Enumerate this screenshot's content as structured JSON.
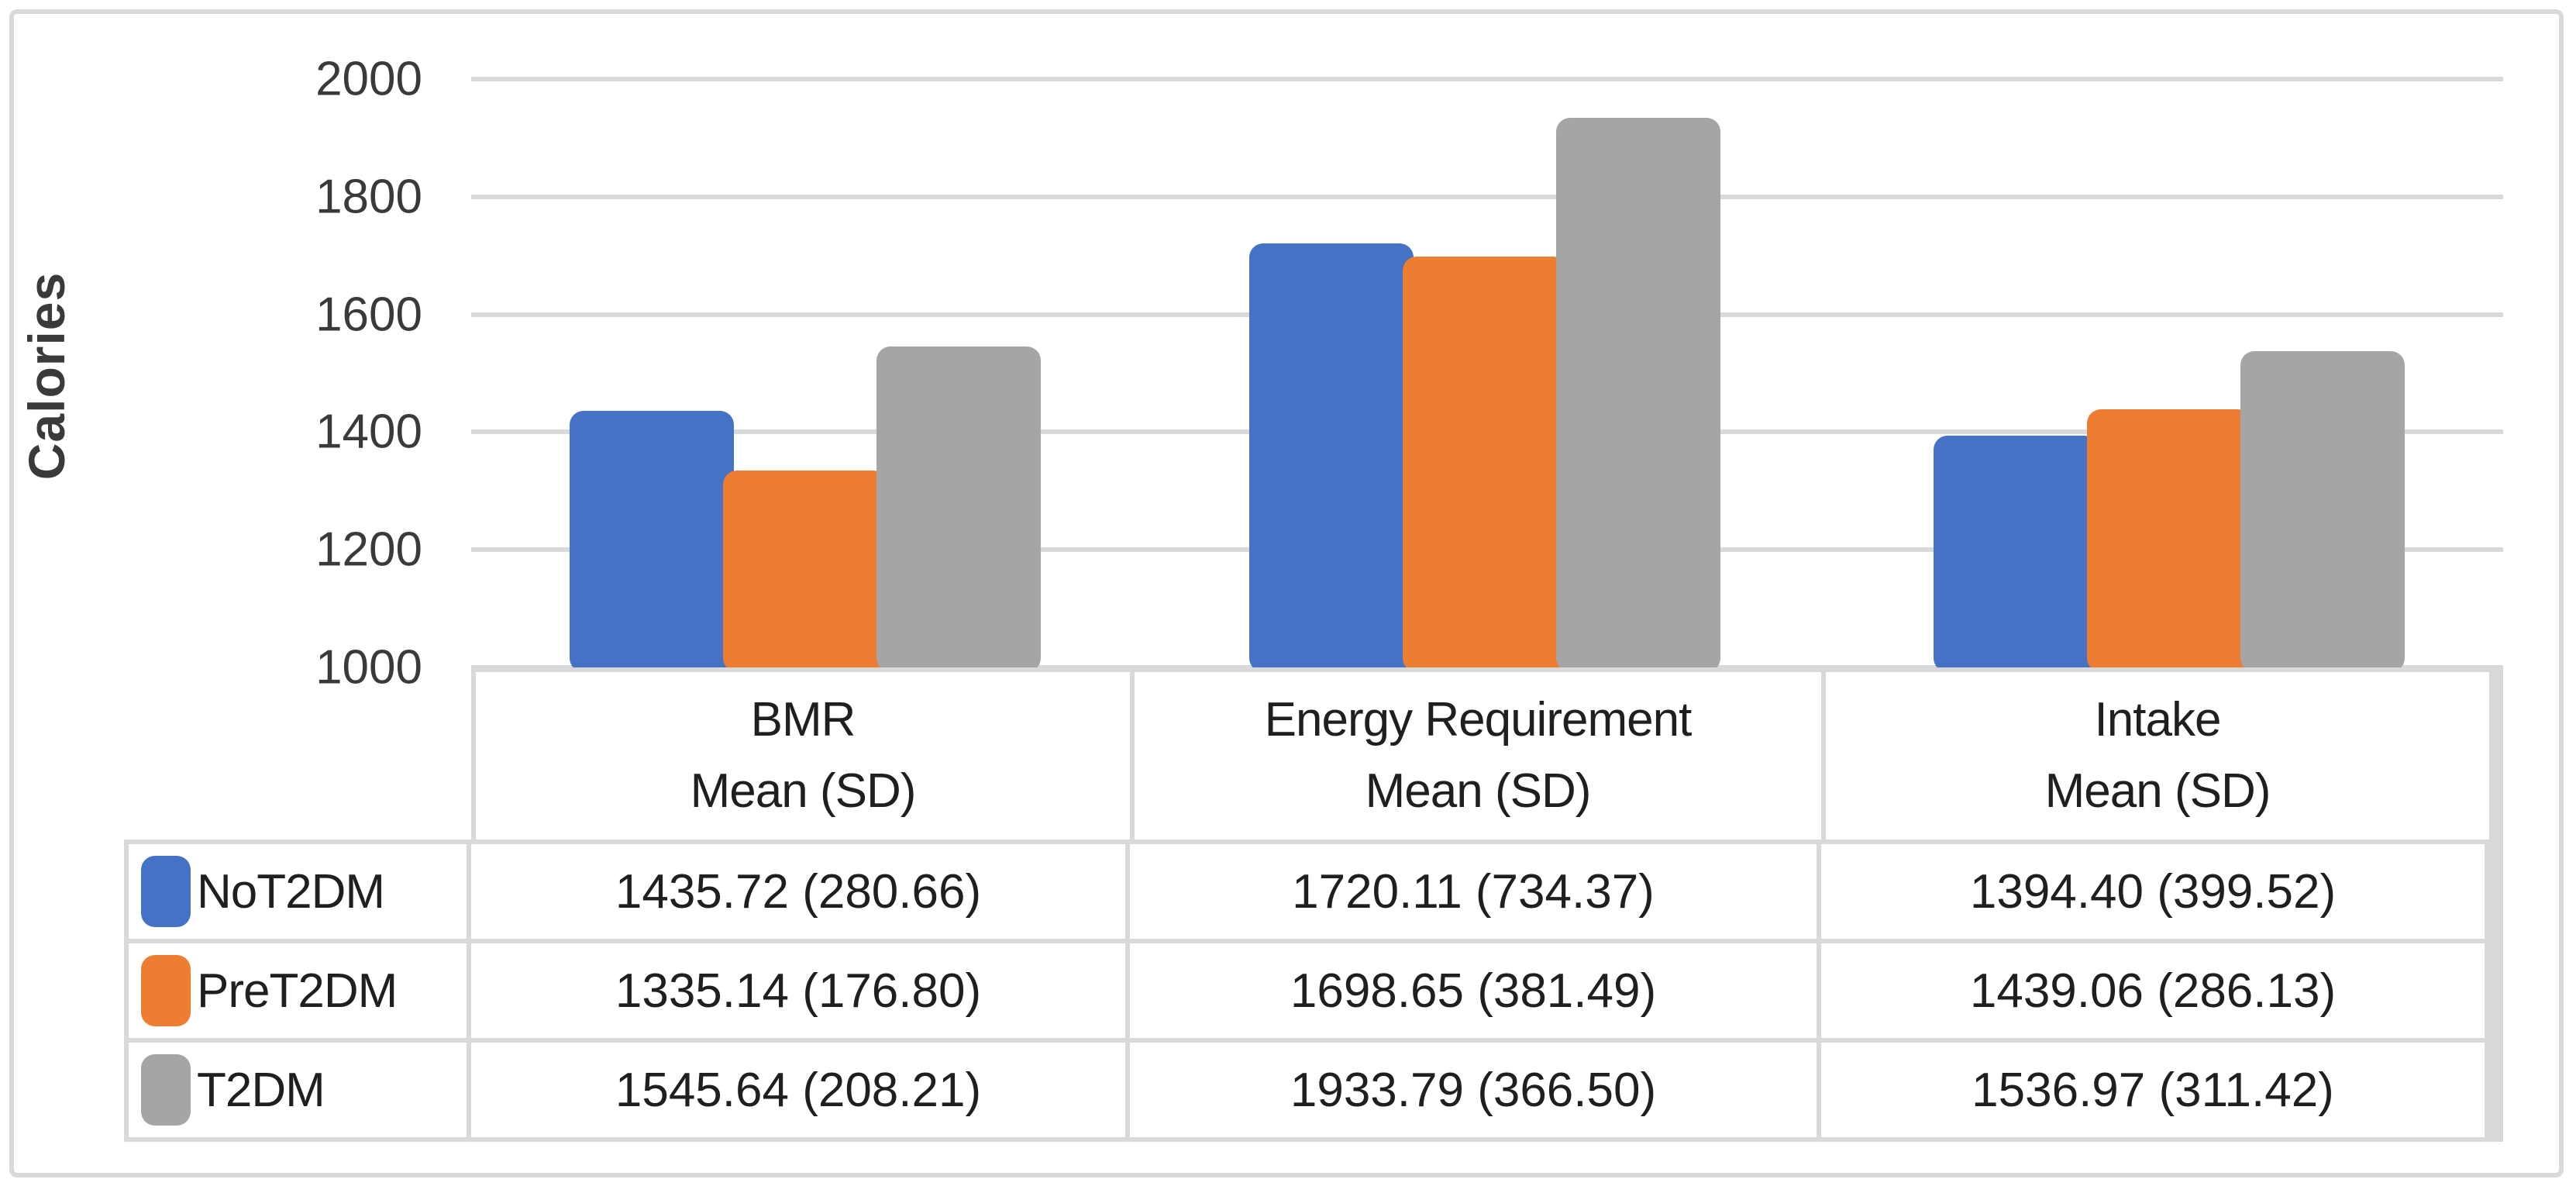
{
  "chart_data": {
    "type": "bar",
    "title": "",
    "ylabel": "Calories",
    "xlabel": "",
    "ylim": [
      1000,
      2000
    ],
    "yticks": [
      1000,
      1200,
      1400,
      1600,
      1800,
      2000
    ],
    "grid": true,
    "gridline_color": "#d9d9d9",
    "legend_position": "data-table-left",
    "has_data_table": true,
    "categories": [
      "BMR",
      "Energy Requirement",
      "Intake"
    ],
    "category_sublabel": "Mean (SD)",
    "series": [
      {
        "name": "NoT2DM",
        "color": "#4472C4",
        "values": [
          1435.72,
          1720.11,
          1394.4
        ],
        "sd": [
          280.66,
          734.37,
          399.52
        ],
        "cell_labels": [
          "1435.72 (280.66)",
          "1720.11 (734.37)",
          "1394.40 (399.52)"
        ]
      },
      {
        "name": "PreT2DM",
        "color": "#ED7D31",
        "values": [
          1335.14,
          1698.65,
          1439.06
        ],
        "sd": [
          176.8,
          381.49,
          286.13
        ],
        "cell_labels": [
          "1335.14 (176.80)",
          "1698.65 (381.49)",
          "1439.06 (286.13)"
        ]
      },
      {
        "name": "T2DM",
        "color": "#A5A5A5",
        "values": [
          1545.64,
          1933.79,
          1536.97
        ],
        "sd": [
          208.21,
          366.5,
          311.42
        ],
        "cell_labels": [
          "1545.64 (208.21)",
          "1933.79 (366.50)",
          "1536.97 (311.42)"
        ]
      }
    ]
  },
  "colors": {
    "border": "#d9d9d9",
    "tick_text": "#3a3a3a",
    "table_text": "#1f1f1f",
    "background": "#ffffff"
  }
}
